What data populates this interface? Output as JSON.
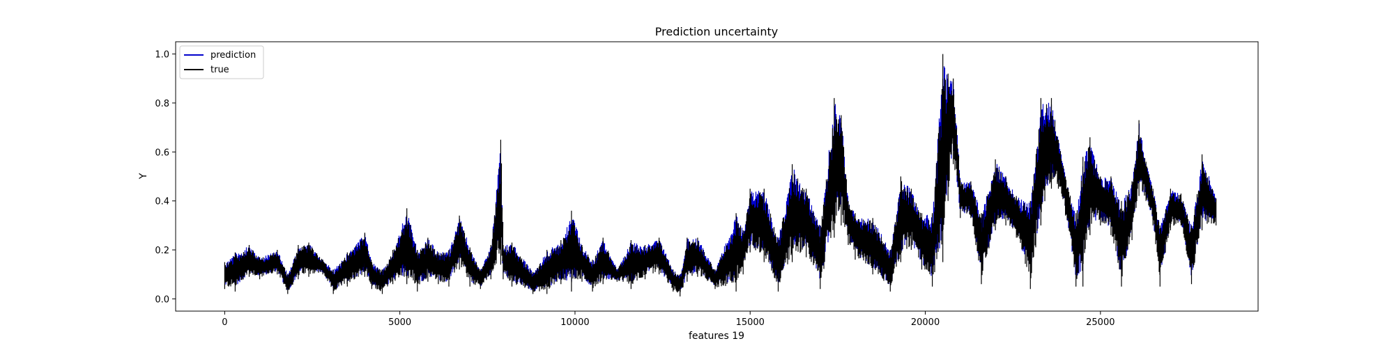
{
  "chart_data": {
    "type": "line",
    "title": "Prediction uncertainty",
    "xlabel": "features 19",
    "ylabel": "Y",
    "xlim": [
      -1400,
      29500
    ],
    "ylim": [
      -0.05,
      1.05
    ],
    "xticks": [
      0,
      5000,
      10000,
      15000,
      20000,
      25000
    ],
    "xtick_labels": [
      "0",
      "5000",
      "10000",
      "15000",
      "20000",
      "25000"
    ],
    "yticks": [
      0.0,
      0.2,
      0.4,
      0.6,
      0.8,
      1.0
    ],
    "ytick_labels": [
      "0.0",
      "0.2",
      "0.4",
      "0.6",
      "0.8",
      "1.0"
    ],
    "grid": false,
    "legend_position": "top-left",
    "n_points": 28300,
    "series": [
      {
        "name": "prediction",
        "color": "#0000cc"
      },
      {
        "name": "true",
        "color": "#000000"
      }
    ],
    "envelope": {
      "x": [
        0,
        300,
        700,
        1000,
        1500,
        1800,
        2100,
        2400,
        2800,
        3100,
        3500,
        4000,
        4200,
        4500,
        4800,
        5200,
        5500,
        5800,
        6100,
        6400,
        6700,
        7000,
        7300,
        7600,
        7880,
        7950,
        8200,
        8800,
        9200,
        9600,
        9900,
        10200,
        10500,
        10800,
        11200,
        11600,
        12000,
        12400,
        12800,
        13000,
        13200,
        13500,
        14000,
        14600,
        14800,
        15000,
        15400,
        15800,
        16200,
        16600,
        17000,
        17400,
        17600,
        17800,
        18000,
        18500,
        19000,
        19300,
        19600,
        19900,
        20200,
        20500,
        20650,
        20800,
        21000,
        21300,
        21600,
        22000,
        22300,
        22600,
        23000,
        23300,
        23600,
        23800,
        24000,
        24300,
        24500,
        24700,
        25000,
        25300,
        25600,
        25900,
        26100,
        26300,
        26500,
        26700,
        27000,
        27300,
        27600,
        27900,
        28300
      ],
      "low": [
        0.04,
        0.03,
        0.09,
        0.08,
        0.1,
        0.02,
        0.08,
        0.09,
        0.1,
        0.02,
        0.05,
        0.09,
        0.04,
        0.02,
        0.06,
        0.06,
        0.03,
        0.07,
        0.06,
        0.05,
        0.12,
        0.05,
        0.04,
        0.08,
        0.14,
        0.08,
        0.05,
        0.02,
        0.02,
        0.06,
        0.03,
        0.07,
        0.03,
        0.06,
        0.07,
        0.04,
        0.08,
        0.1,
        0.03,
        0.01,
        0.07,
        0.09,
        0.04,
        0.03,
        0.1,
        0.19,
        0.15,
        0.03,
        0.15,
        0.17,
        0.04,
        0.25,
        0.3,
        0.22,
        0.16,
        0.1,
        0.03,
        0.15,
        0.2,
        0.12,
        0.05,
        0.15,
        0.4,
        0.55,
        0.33,
        0.33,
        0.06,
        0.28,
        0.3,
        0.25,
        0.04,
        0.3,
        0.45,
        0.45,
        0.34,
        0.05,
        0.05,
        0.26,
        0.3,
        0.26,
        0.05,
        0.24,
        0.42,
        0.4,
        0.3,
        0.05,
        0.28,
        0.3,
        0.06,
        0.28,
        0.3
      ],
      "high": [
        0.15,
        0.19,
        0.22,
        0.17,
        0.2,
        0.1,
        0.22,
        0.23,
        0.16,
        0.12,
        0.19,
        0.27,
        0.15,
        0.12,
        0.2,
        0.37,
        0.2,
        0.25,
        0.19,
        0.2,
        0.34,
        0.21,
        0.12,
        0.22,
        0.65,
        0.22,
        0.23,
        0.11,
        0.2,
        0.24,
        0.36,
        0.22,
        0.16,
        0.25,
        0.12,
        0.24,
        0.22,
        0.25,
        0.12,
        0.1,
        0.25,
        0.25,
        0.12,
        0.35,
        0.28,
        0.45,
        0.45,
        0.25,
        0.55,
        0.45,
        0.3,
        0.82,
        0.75,
        0.4,
        0.35,
        0.33,
        0.2,
        0.5,
        0.45,
        0.35,
        0.35,
        1.0,
        0.92,
        0.9,
        0.48,
        0.48,
        0.35,
        0.57,
        0.5,
        0.42,
        0.4,
        0.82,
        0.82,
        0.65,
        0.5,
        0.35,
        0.58,
        0.66,
        0.5,
        0.5,
        0.4,
        0.48,
        0.73,
        0.56,
        0.45,
        0.3,
        0.45,
        0.43,
        0.3,
        0.59,
        0.41
      ]
    }
  }
}
